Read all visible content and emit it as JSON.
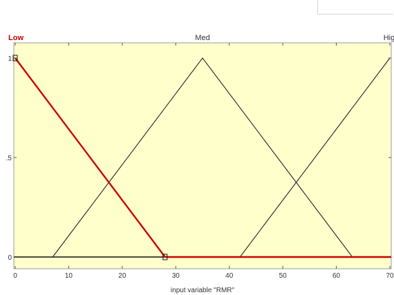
{
  "chart_data": {
    "type": "line",
    "xlabel": "input variable \"RMR\"",
    "xlim": [
      0,
      70
    ],
    "ylim": [
      0,
      1
    ],
    "xticks": [
      "0",
      "10",
      "20",
      "30",
      "40",
      "50",
      "60",
      "70"
    ],
    "yticks": [
      "0",
      ".5",
      "1"
    ],
    "xtick_values": [
      0,
      10,
      20,
      30,
      40,
      50,
      60,
      70
    ],
    "ytick_values": [
      0,
      0.5,
      1
    ],
    "grid": false,
    "series": [
      {
        "name": "Low",
        "x": [
          0,
          28
        ],
        "y": [
          1,
          0
        ],
        "color": "#cc0000",
        "selected": true
      },
      {
        "name": "Med",
        "x": [
          7,
          35,
          63
        ],
        "y": [
          0,
          1,
          0
        ],
        "color": "#222222",
        "selected": false
      },
      {
        "name": "High",
        "x": [
          42,
          70
        ],
        "y": [
          0,
          1
        ],
        "color": "#222222",
        "selected": false
      }
    ],
    "colors": {
      "plot_background": "#ffffcc",
      "selected": "#cc0000",
      "line": "#222222"
    }
  }
}
